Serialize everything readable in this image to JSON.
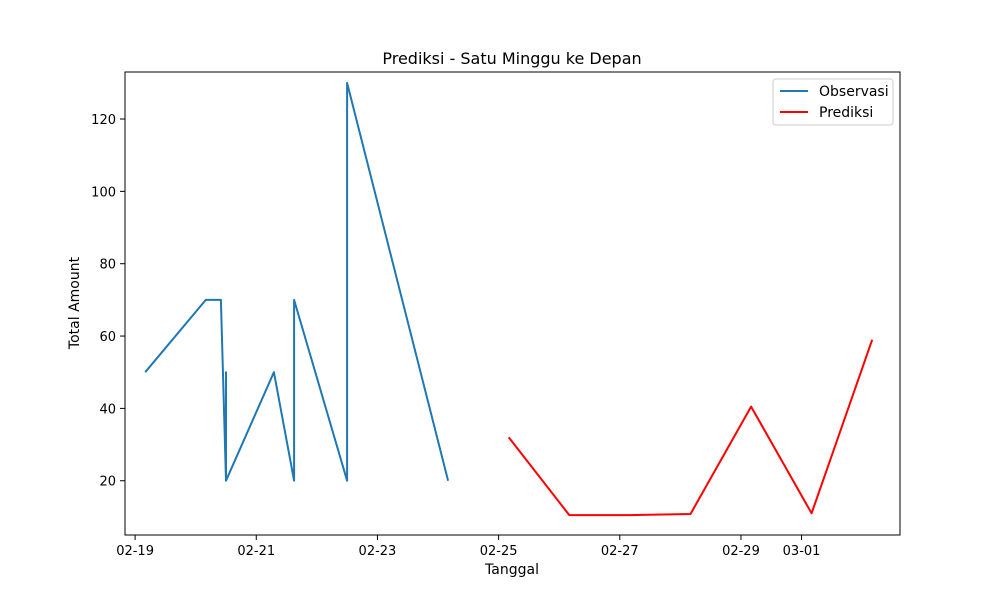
{
  "chart_data": {
    "type": "line",
    "title": "Prediksi - Satu Minggu ke Depan",
    "xlabel": "Tanggal",
    "ylabel": "Total Amount",
    "x_ticks": [
      "02-19",
      "02-21",
      "02-23",
      "02-25",
      "02-27",
      "02-29",
      "03-01"
    ],
    "y_ticks": [
      "20",
      "40",
      "60",
      "80",
      "100",
      "120"
    ],
    "ylim": [
      5,
      133
    ],
    "legend_position": "top-right",
    "grid": false,
    "series": [
      {
        "name": "Observasi",
        "color": "#1f77b4",
        "points": [
          {
            "x": "02-19 04:00",
            "y": 50
          },
          {
            "x": "02-20 04:00",
            "y": 70
          },
          {
            "x": "02-20 10:00",
            "y": 70
          },
          {
            "x": "02-20 12:00",
            "y": 20
          },
          {
            "x": "02-20 12:00",
            "y": 50
          },
          {
            "x": "02-20 12:00",
            "y": 20
          },
          {
            "x": "02-21 07:00",
            "y": 50
          },
          {
            "x": "02-21 15:00",
            "y": 20
          },
          {
            "x": "02-21 15:00",
            "y": 70
          },
          {
            "x": "02-22 12:00",
            "y": 20
          },
          {
            "x": "02-22 12:00",
            "y": 130
          },
          {
            "x": "02-24 04:00",
            "y": 20
          }
        ]
      },
      {
        "name": "Prediksi",
        "color": "#ff0000",
        "points": [
          {
            "x": "02-25 04:00",
            "y": 32
          },
          {
            "x": "02-26 04:00",
            "y": 10.5
          },
          {
            "x": "02-27 04:00",
            "y": 10.5
          },
          {
            "x": "02-28 04:00",
            "y": 10.8
          },
          {
            "x": "02-29 04:00",
            "y": 40.5
          },
          {
            "x": "03-01 04:00",
            "y": 11
          },
          {
            "x": "03-02 04:00",
            "y": 59
          }
        ]
      }
    ]
  }
}
